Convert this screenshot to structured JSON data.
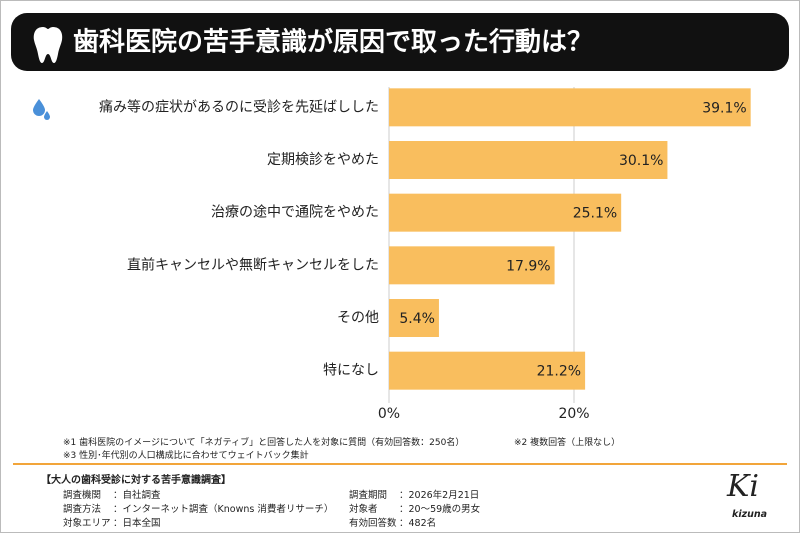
{
  "chart_data": {
    "type": "bar",
    "orientation": "horizontal",
    "title": "歯科医院の苦手意識が原因で取った行動は？",
    "categories": [
      "痛み等の症状があるのに受診を先延ばしした",
      "定期検診をやめた",
      "治療の途中で通院をやめた",
      "直前キャンセルや無断キャンセルをした",
      "その他",
      "特になし"
    ],
    "values": [
      39.1,
      30.1,
      25.1,
      17.9,
      5.4,
      21.2
    ],
    "value_labels": [
      "39.1%",
      "30.1%",
      "25.1%",
      "17.9%",
      "5.4%",
      "21.2%"
    ],
    "color": "#f9be5e",
    "xlim": [
      0,
      40
    ],
    "xticks": [
      {
        "value": 0,
        "label": "0%"
      },
      {
        "value": 20,
        "label": "20%"
      }
    ],
    "grid": true
  },
  "notes": [
    "※1 歯科医院のイメージについて「ネガティブ」と回答した人を対象に質問（有効回答数：250名）",
    "※2 複数回答（上限なし）",
    "※3 性別･年代別の人口構成比に合わせてウェイトバック集計"
  ],
  "survey": {
    "title": "【大人の歯科受診に対する苦手意識調査】",
    "rows": [
      [
        "調査機関",
        "：自社調査"
      ],
      [
        "調査方法",
        "：インターネット調査（Knowns 消費者リサーチ）"
      ],
      [
        "対象エリア",
        "：日本全国"
      ],
      [
        "調査期間",
        "：2026年2月21日"
      ],
      [
        "対象者",
        "：20～59歳の男女"
      ],
      [
        "有効回答数",
        "：482名"
      ]
    ]
  },
  "logo": "kizuna"
}
